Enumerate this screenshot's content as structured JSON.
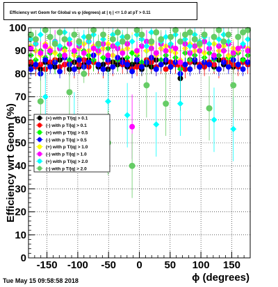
{
  "chart_data": {
    "type": "scatter",
    "title": "Efficiency wrt Geom for Global vs φ (degrees) at | η | <= 1.0 at pT > 0.11",
    "xlabel": "ϕ (degrees)",
    "ylabel": "Efficiency wrt Geom (%)",
    "xlim": [
      -180,
      180
    ],
    "ylim": [
      0,
      100
    ],
    "xticks": [
      -150,
      -100,
      -50,
      0,
      50,
      100,
      150
    ],
    "yticks": [
      0,
      10,
      20,
      30,
      40,
      50,
      60,
      70,
      80,
      90,
      100
    ],
    "grid": true,
    "legend_position": "middle-left",
    "footer": "Tue May 15 09:58:58 2018",
    "series": [
      {
        "name": "(+) with p T/|q| > 0.1",
        "color": "#000000",
        "values": [
          84,
          83,
          82,
          85,
          84,
          83,
          86,
          84,
          82,
          85,
          83,
          84,
          86,
          85,
          83,
          84,
          82,
          85,
          84,
          86,
          83,
          84,
          85,
          82,
          84,
          83,
          86,
          84,
          85,
          83,
          84,
          78,
          84,
          86,
          85,
          83,
          84,
          85,
          83,
          86,
          84,
          85,
          83,
          84,
          86,
          85
        ]
      },
      {
        "name": "(-) with p T/|q| > 0.1",
        "color": "#ff0000",
        "values": [
          85,
          83,
          84,
          82,
          85,
          86,
          83,
          84,
          85,
          82,
          84,
          86,
          83,
          85,
          84,
          82,
          85,
          83,
          86,
          84,
          85,
          82,
          83,
          84,
          86,
          85,
          83,
          84,
          82,
          85,
          84,
          83,
          82,
          85,
          86,
          84,
          83,
          85,
          84,
          82,
          86,
          85,
          84,
          83,
          85,
          84
        ]
      },
      {
        "name": "(+) with p T/|q| > 0.5",
        "color": "#00ff00",
        "values": [
          88,
          86,
          90,
          87,
          89,
          85,
          88,
          91,
          86,
          89,
          87,
          90,
          88,
          86,
          89,
          87,
          91,
          88,
          86,
          90,
          87,
          89,
          88,
          85,
          90,
          87,
          89,
          86,
          88,
          90,
          87,
          82,
          89,
          86,
          88,
          90,
          87,
          89,
          86,
          88,
          90,
          87,
          88,
          89,
          86,
          88
        ]
      },
      {
        "name": "(-) with p T/|q| > 0.5",
        "color": "#0000ff",
        "values": [
          82,
          84,
          80,
          86,
          83,
          85,
          81,
          87,
          84,
          82,
          86,
          83,
          85,
          88,
          84,
          82,
          86,
          83,
          87,
          85,
          84,
          81,
          86,
          83,
          85,
          87,
          82,
          84,
          86,
          83,
          85,
          80,
          84,
          82,
          86,
          83,
          85,
          84,
          87,
          82,
          85,
          83,
          86,
          84,
          82,
          85
        ]
      },
      {
        "name": "(+) with p T/|q| > 1.0",
        "color": "#ffff00",
        "values": [
          92,
          90,
          88,
          93,
          91,
          89,
          92,
          90,
          94,
          88,
          91,
          93,
          90,
          92,
          89,
          91,
          93,
          88,
          92,
          90,
          91,
          94,
          89,
          92,
          90,
          93,
          88,
          91,
          92,
          90,
          89,
          86,
          91,
          93,
          90,
          92,
          89,
          91,
          93,
          90,
          92,
          88,
          91,
          90,
          92,
          91
        ]
      },
      {
        "name": "(-) with p T/|q| > 1.0",
        "color": "#ff00ff",
        "values": [
          91,
          93,
          89,
          92,
          90,
          94,
          91,
          88,
          93,
          90,
          92,
          89,
          94,
          91,
          90,
          93,
          88,
          92,
          91,
          89,
          93,
          57,
          90,
          92,
          94,
          91,
          89,
          93,
          90,
          92,
          91,
          85,
          93,
          89,
          92,
          90,
          94,
          91,
          88,
          92,
          90,
          93,
          89,
          91,
          92,
          90
        ]
      },
      {
        "name": "(+) with p T/|q| > 2.0",
        "color": "#00ffff",
        "values": [
          95,
          93,
          97,
          70,
          96,
          94,
          92,
          98,
          95,
          58,
          93,
          96,
          94,
          97,
          92,
          95,
          68,
          97,
          93,
          96,
          62,
          94,
          97,
          95,
          92,
          98,
          58,
          94,
          96,
          93,
          97,
          67,
          95,
          92,
          97,
          94,
          96,
          93,
          60,
          95,
          97,
          94,
          56,
          96,
          93,
          95
        ]
      },
      {
        "name": "(-) with p T/|q| > 2.0",
        "color": "#66cc66",
        "values": [
          97,
          95,
          68,
          99,
          96,
          93,
          98,
          95,
          72,
          97,
          94,
          80,
          96,
          99,
          93,
          97,
          50,
          95,
          98,
          94,
          96,
          40,
          99,
          97,
          75,
          94,
          98,
          95,
          67,
          96,
          99,
          94,
          97,
          98,
          95,
          93,
          97,
          65,
          96,
          99,
          94,
          97,
          75,
          96,
          98,
          99
        ]
      }
    ]
  }
}
